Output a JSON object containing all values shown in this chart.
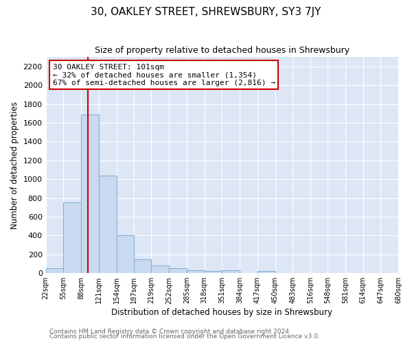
{
  "title": "30, OAKLEY STREET, SHREWSBURY, SY3 7JY",
  "subtitle": "Size of property relative to detached houses in Shrewsbury",
  "xlabel": "Distribution of detached houses by size in Shrewsbury",
  "ylabel": "Number of detached properties",
  "bin_edges": [
    22,
    55,
    88,
    121,
    154,
    187,
    219,
    252,
    285,
    318,
    351,
    384,
    417,
    450,
    483,
    516,
    548,
    581,
    614,
    647,
    680
  ],
  "bar_heights": [
    50,
    750,
    1690,
    1040,
    405,
    150,
    85,
    50,
    30,
    25,
    30,
    0,
    20,
    0,
    0,
    0,
    0,
    0,
    0,
    0
  ],
  "bar_color": "#c9d9ef",
  "bar_edge_color": "#7bafd4",
  "reference_line_x": 101,
  "reference_line_color": "#cc0000",
  "ylim": [
    0,
    2300
  ],
  "yticks": [
    0,
    200,
    400,
    600,
    800,
    1000,
    1200,
    1400,
    1600,
    1800,
    2000,
    2200
  ],
  "annotation_title": "30 OAKLEY STREET: 101sqm",
  "annotation_line1": "← 32% of detached houses are smaller (1,354)",
  "annotation_line2": "67% of semi-detached houses are larger (2,816) →",
  "annotation_box_facecolor": "#ffffff",
  "annotation_box_edgecolor": "#cc0000",
  "plot_bg_color": "#dce6f5",
  "fig_bg_color": "#ffffff",
  "grid_color": "#ffffff",
  "footer_line1": "Contains HM Land Registry data © Crown copyright and database right 2024.",
  "footer_line2": "Contains public sector information licensed under the Open Government Licence v3.0.",
  "title_fontsize": 11,
  "subtitle_fontsize": 9,
  "axis_label_fontsize": 8.5,
  "tick_fontsize": 7,
  "ytick_fontsize": 8,
  "annotation_fontsize": 8,
  "footer_fontsize": 6.5
}
